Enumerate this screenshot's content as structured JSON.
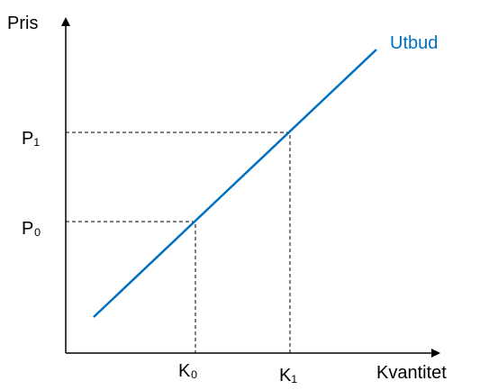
{
  "axes": {
    "y_label": "Pris",
    "x_label": "Kvantitet"
  },
  "curve": {
    "label": "Utbud"
  },
  "points": [
    {
      "price_label": "P₀",
      "quantity_label": "K₀"
    },
    {
      "price_label": "P₁",
      "quantity_label": "K₁"
    }
  ]
}
